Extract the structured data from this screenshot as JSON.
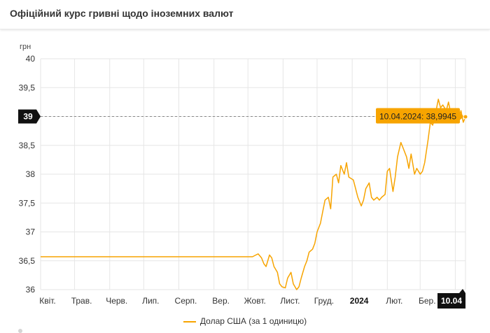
{
  "header": {
    "title": "Офіційний курс гривні щодо іноземних валют"
  },
  "legend": {
    "label": "Долар США (за 1 одиницю)"
  },
  "colors": {
    "series": "#f7a400",
    "grid": "#e6e6e6",
    "label_bg": "#111111",
    "tooltip_bg": "#f7a400"
  },
  "chart_data": {
    "type": "line",
    "ylabel": "грн",
    "ylim": [
      36,
      40
    ],
    "y_ticks": [
      "40",
      "39,5",
      "39",
      "38,5",
      "38",
      "37,5",
      "37",
      "36,5",
      "36"
    ],
    "x_tick_labels": [
      "Квіт.",
      "Трав.",
      "Черв.",
      "Лип.",
      "Серп.",
      "Вер.",
      "Жовт.",
      "Лист.",
      "Груд.",
      "2024",
      "Лют.",
      "Бер."
    ],
    "bold_x_label": "2024",
    "crosshair": {
      "y_label": "39",
      "x_label": "10.04",
      "tooltip": "10.04.2024: 38,9945"
    },
    "grid": true,
    "legend_position": "bottom",
    "series": [
      {
        "name": "Долар США (за 1 одиницю)",
        "x": [
          "2023-04-01",
          "2023-10-05",
          "2023-10-08",
          "2023-10-10",
          "2023-10-13",
          "2023-10-15",
          "2023-10-17",
          "2023-10-20",
          "2023-10-22",
          "2023-10-24",
          "2023-10-27",
          "2023-10-29",
          "2023-10-31",
          "2023-11-03",
          "2023-11-05",
          "2023-11-08",
          "2023-11-10",
          "2023-11-13",
          "2023-11-15",
          "2023-11-17",
          "2023-11-20",
          "2023-11-22",
          "2023-11-24",
          "2023-11-27",
          "2023-11-29",
          "2023-12-01",
          "2023-12-04",
          "2023-12-06",
          "2023-12-08",
          "2023-12-11",
          "2023-12-13",
          "2023-12-15",
          "2023-12-18",
          "2023-12-20",
          "2023-12-22",
          "2023-12-25",
          "2023-12-27",
          "2023-12-29",
          "2024-01-02",
          "2024-01-04",
          "2024-01-06",
          "2024-01-09",
          "2024-01-11",
          "2024-01-13",
          "2024-01-16",
          "2024-01-18",
          "2024-01-20",
          "2024-01-23",
          "2024-01-25",
          "2024-01-27",
          "2024-01-30",
          "2024-02-01",
          "2024-02-03",
          "2024-02-06",
          "2024-02-08",
          "2024-02-10",
          "2024-02-13",
          "2024-02-15",
          "2024-02-18",
          "2024-02-20",
          "2024-02-22",
          "2024-02-25",
          "2024-02-27",
          "2024-03-01",
          "2024-03-03",
          "2024-03-05",
          "2024-03-08",
          "2024-03-10",
          "2024-03-12",
          "2024-03-14",
          "2024-03-17",
          "2024-03-19",
          "2024-03-21",
          "2024-03-24",
          "2024-03-26",
          "2024-03-28",
          "2024-03-31",
          "2024-04-02",
          "2024-04-04",
          "2024-04-06",
          "2024-04-08",
          "2024-04-10"
        ],
        "values": [
          36.57,
          36.57,
          36.6,
          36.62,
          36.55,
          36.45,
          36.4,
          36.6,
          36.55,
          36.4,
          36.3,
          36.1,
          36.05,
          36.03,
          36.2,
          36.3,
          36.1,
          36.0,
          36.05,
          36.2,
          36.4,
          36.5,
          36.65,
          36.7,
          36.8,
          37.0,
          37.15,
          37.35,
          37.55,
          37.6,
          37.4,
          37.95,
          38.0,
          37.85,
          38.15,
          38.0,
          38.2,
          37.95,
          37.9,
          37.75,
          37.6,
          37.45,
          37.55,
          37.75,
          37.85,
          37.6,
          37.55,
          37.6,
          37.55,
          37.6,
          37.65,
          38.05,
          38.1,
          37.7,
          37.95,
          38.3,
          38.55,
          38.45,
          38.3,
          38.1,
          38.35,
          38.0,
          38.1,
          38.0,
          38.05,
          38.2,
          38.6,
          38.9,
          38.85,
          39.0,
          39.3,
          39.15,
          39.2,
          39.1,
          39.25,
          39.05,
          38.9,
          39.0,
          38.95,
          39.1,
          38.9,
          38.9945
        ]
      }
    ]
  }
}
